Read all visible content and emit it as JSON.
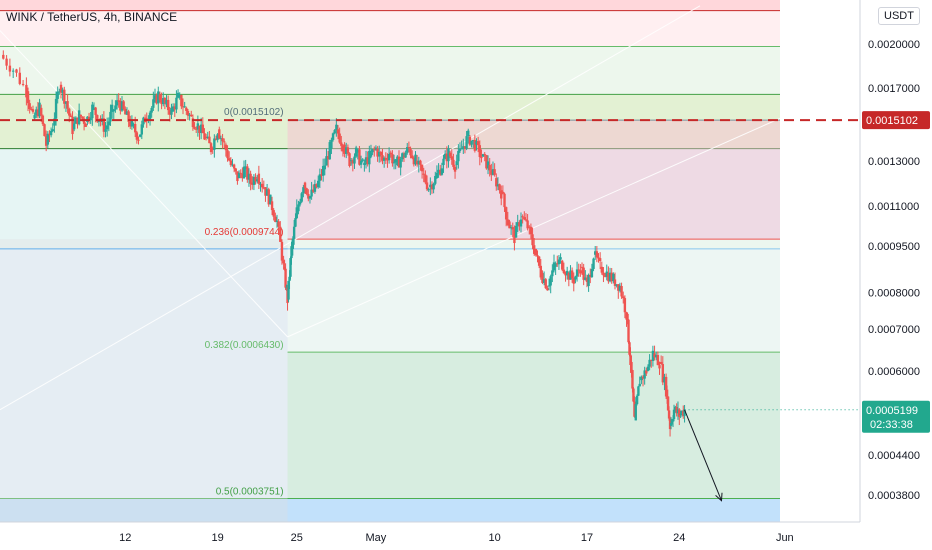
{
  "chart_data": {
    "type": "candlestick",
    "title": "WINK / TetherUS, 4h, BINANCE",
    "currency_button": "USDT",
    "y_axis": {
      "scale": "log",
      "range": [
        0.000344,
        0.00235
      ],
      "ticks": [
        "0.0020000",
        "0.0017000",
        "0.0015000",
        "0.0013000",
        "0.0011000",
        "0.0009500",
        "0.0008000",
        "0.0007000",
        "0.0006000",
        "0.0005199",
        "0.0004400",
        "0.0003800"
      ],
      "tick_values": [
        0.002,
        0.0017,
        0.0015,
        0.0013,
        0.0011,
        0.00095,
        0.0008,
        0.0007,
        0.0006,
        0.0005199,
        0.00044,
        0.00038
      ]
    },
    "x_axis": {
      "tick_labels": [
        "12",
        "19",
        "25",
        "May",
        "10",
        "17",
        "24",
        "Jun"
      ],
      "tick_days": [
        8,
        15,
        21,
        27,
        36,
        43,
        50,
        58
      ],
      "range_days": [
        -1.5,
        63.7
      ],
      "note": "day index 0 = April 4"
    },
    "price_marker": {
      "value": 0.0015102,
      "label": "0.0015102",
      "color": "#c62828"
    },
    "last_price": {
      "value": 0.0005199,
      "label": "0.0005199",
      "countdown": "02:33:38",
      "color": "#22a88e"
    },
    "fib_levels": [
      {
        "ratio": 1.0,
        "value": 0.00245,
        "label": "",
        "color": "#ef5350"
      },
      {
        "ratio": 0.886,
        "value": 0.00226,
        "label": "",
        "color": "#c62828"
      },
      {
        "ratio": 0.786,
        "value": 0.00198,
        "label": "",
        "color": "#66bb6a"
      },
      {
        "ratio": 0.618,
        "value": 0.00166,
        "label": "",
        "color": "#43a047"
      },
      {
        "ratio": 0.5,
        "value": 0.00136,
        "label": "",
        "color": "#2e7d32"
      },
      {
        "ratio": 0.382,
        "value": 0.00094,
        "label": "",
        "color": "#2196f3"
      },
      {
        "ratio": 0.0,
        "value": 0.0003751,
        "label": "",
        "color": "#4caf50"
      }
    ],
    "fib_labels": {
      "top": "0(0.0015102)",
      "l236": "0.236(0.0009744)",
      "l382": "0.382(0.0006430)",
      "l5": "0.5(0.0003751)"
    },
    "retracement_levels": [
      {
        "value": 0.0015102,
        "color": "#78909c"
      },
      {
        "value": 0.0009744,
        "color": "#ef5350"
      },
      {
        "value": 0.000643,
        "color": "#66bb6a"
      },
      {
        "value": 0.0003751,
        "color": "#4caf50"
      }
    ],
    "candles_close_path": [
      [
        -1.5,
        0.00192
      ],
      [
        -0.5,
        0.00182
      ],
      [
        0.5,
        0.00168
      ],
      [
        1,
        0.00152
      ],
      [
        1.5,
        0.00158
      ],
      [
        2,
        0.00138
      ],
      [
        2.5,
        0.00148
      ],
      [
        3,
        0.00172
      ],
      [
        3.5,
        0.00162
      ],
      [
        4,
        0.00146
      ],
      [
        4.5,
        0.00154
      ],
      [
        5,
        0.0015
      ],
      [
        5.5,
        0.00158
      ],
      [
        6,
        0.00152
      ],
      [
        6.5,
        0.00146
      ],
      [
        7,
        0.00156
      ],
      [
        7.5,
        0.00162
      ],
      [
        8,
        0.00154
      ],
      [
        8.5,
        0.00148
      ],
      [
        9,
        0.00142
      ],
      [
        9.5,
        0.00152
      ],
      [
        10,
        0.00158
      ],
      [
        10.5,
        0.00166
      ],
      [
        11,
        0.0016
      ],
      [
        11.5,
        0.00156
      ],
      [
        12,
        0.00164
      ],
      [
        12.5,
        0.00158
      ],
      [
        13,
        0.00152
      ],
      [
        13.5,
        0.00148
      ],
      [
        14,
        0.00142
      ],
      [
        14.5,
        0.00136
      ],
      [
        15,
        0.00146
      ],
      [
        15.5,
        0.00138
      ],
      [
        16,
        0.00128
      ],
      [
        16.5,
        0.00122
      ],
      [
        17,
        0.00126
      ],
      [
        17.5,
        0.0012
      ],
      [
        18,
        0.00124
      ],
      [
        18.5,
        0.00118
      ],
      [
        19,
        0.00112
      ],
      [
        19.5,
        0.00104
      ],
      [
        20,
        0.00088
      ],
      [
        20.3,
        0.00078
      ],
      [
        20.6,
        0.00094
      ],
      [
        21,
        0.00108
      ],
      [
        21.5,
        0.0012
      ],
      [
        22,
        0.00114
      ],
      [
        22.5,
        0.00118
      ],
      [
        23,
        0.00126
      ],
      [
        23.5,
        0.00136
      ],
      [
        24,
        0.00146
      ],
      [
        24.5,
        0.00138
      ],
      [
        25,
        0.0013
      ],
      [
        25.5,
        0.00134
      ],
      [
        26,
        0.00128
      ],
      [
        26.5,
        0.00132
      ],
      [
        27,
        0.00136
      ],
      [
        27.5,
        0.0013
      ],
      [
        28,
        0.00134
      ],
      [
        28.5,
        0.00128
      ],
      [
        29,
        0.00132
      ],
      [
        29.5,
        0.00136
      ],
      [
        30,
        0.0013
      ],
      [
        30.5,
        0.00124
      ],
      [
        31,
        0.00118
      ],
      [
        31.5,
        0.00122
      ],
      [
        32,
        0.00128
      ],
      [
        32.5,
        0.00134
      ],
      [
        33,
        0.00128
      ],
      [
        33.5,
        0.00136
      ],
      [
        34,
        0.00142
      ],
      [
        34.5,
        0.00138
      ],
      [
        35,
        0.00132
      ],
      [
        35.5,
        0.00128
      ],
      [
        36,
        0.00122
      ],
      [
        36.5,
        0.00116
      ],
      [
        37,
        0.00104
      ],
      [
        37.5,
        0.00098
      ],
      [
        38,
        0.00106
      ],
      [
        38.5,
        0.00102
      ],
      [
        39,
        0.00094
      ],
      [
        39.5,
        0.00086
      ],
      [
        40,
        0.00082
      ],
      [
        40.5,
        0.00088
      ],
      [
        41,
        0.0009
      ],
      [
        41.5,
        0.00086
      ],
      [
        42,
        0.00084
      ],
      [
        42.5,
        0.00088
      ],
      [
        43,
        0.00082
      ],
      [
        43.5,
        0.00092
      ],
      [
        44,
        0.00088
      ],
      [
        44.5,
        0.00086
      ],
      [
        45,
        0.00084
      ],
      [
        45.5,
        0.00082
      ],
      [
        46,
        0.00074
      ],
      [
        46.3,
        0.00062
      ],
      [
        46.6,
        0.0005
      ],
      [
        47,
        0.00058
      ],
      [
        47.5,
        0.0006
      ],
      [
        48,
        0.00064
      ],
      [
        48.5,
        0.00062
      ],
      [
        49,
        0.00056
      ],
      [
        49.3,
        0.00049
      ],
      [
        49.6,
        0.00052
      ],
      [
        50,
        0.00051
      ],
      [
        50.4,
        0.0005199
      ]
    ],
    "projection_arrow": {
      "from": [
        50.4,
        0.0005199
      ],
      "to": [
        53.2,
        0.000372
      ]
    },
    "grid": false,
    "legend": "none"
  }
}
